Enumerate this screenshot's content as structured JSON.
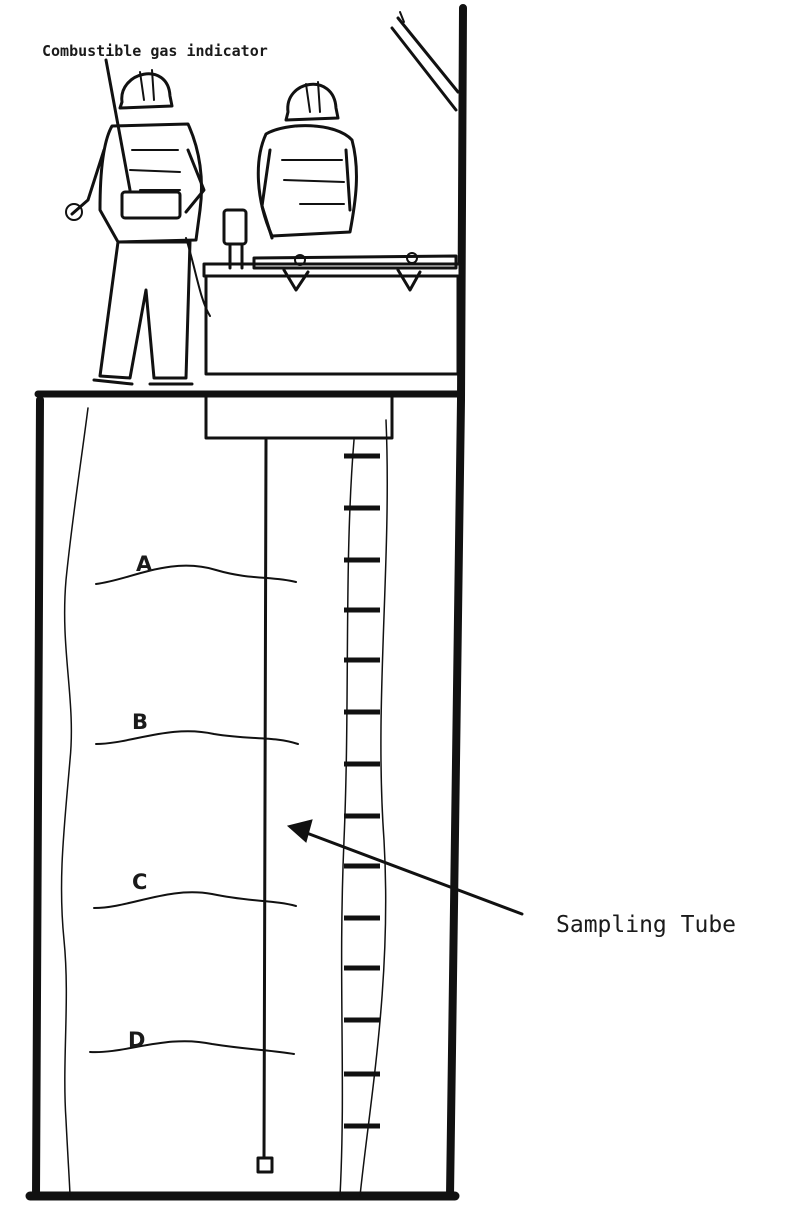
{
  "labels": {
    "instrument": "Combustible gas indicator",
    "tube": "Sampling Tube",
    "levels": [
      "A",
      "B",
      "C",
      "D"
    ]
  },
  "colors": {
    "ink": "#111111",
    "paper": "#ffffff"
  }
}
